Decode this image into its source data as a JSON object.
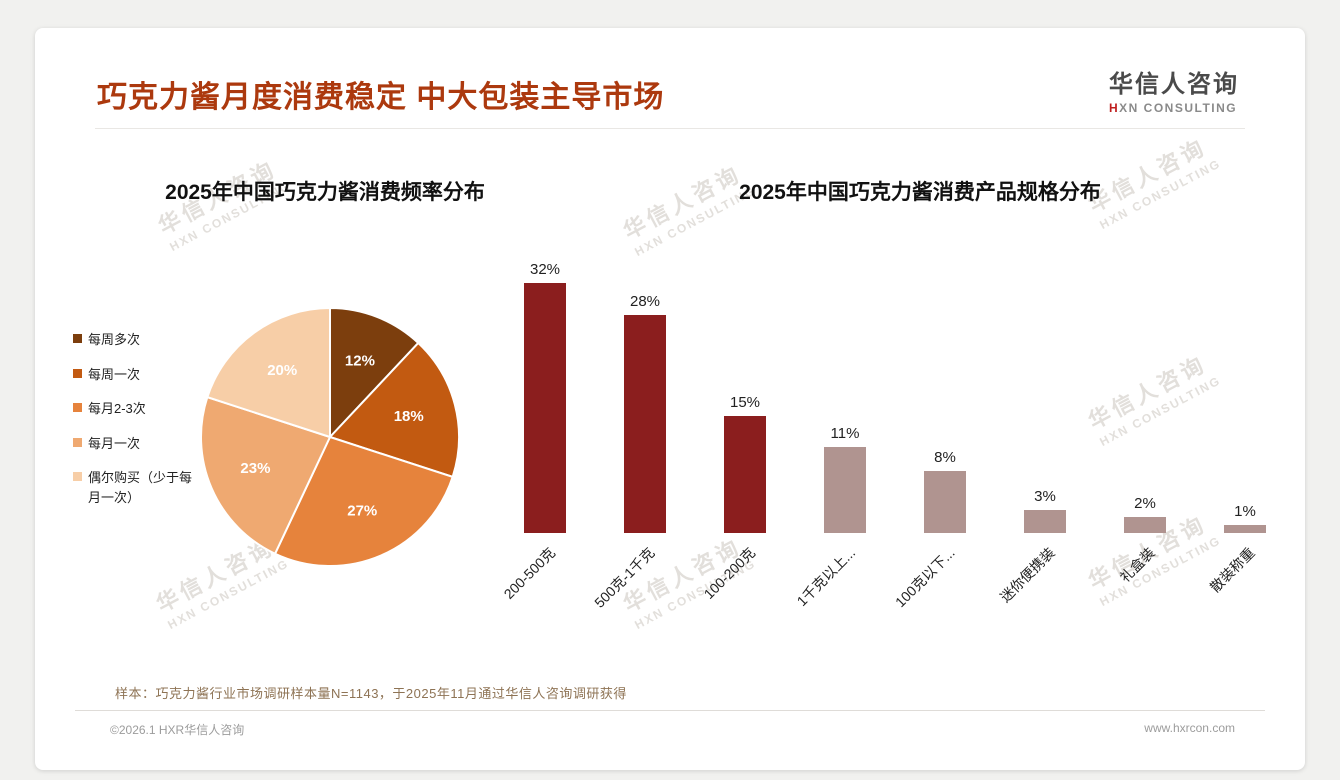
{
  "page_title": "巧克力酱月度消费稳定 中大包装主导市场",
  "brand": {
    "cn": "华信人咨询",
    "en_first": "H",
    "en_rest": "XN CONSULTING"
  },
  "watermark": {
    "line1": "华信人咨询",
    "line2": "HXN CONSULTING"
  },
  "footer": {
    "note": "样本：巧克力酱行业市场调研样本量N=1143，于2025年11月通过华信人咨询调研获得",
    "left": "©2026.1 HXR华信人咨询",
    "right": "www.hxrcon.com"
  },
  "chart_data": [
    {
      "type": "pie",
      "title": "2025年中国巧克力酱消费频率分布",
      "labels": [
        "每周多次",
        "每周一次",
        "每月2-3次",
        "每月一次",
        "偶尔购买（少于每月一次）"
      ],
      "values": [
        12,
        18,
        27,
        23,
        20
      ],
      "unit": "%",
      "colors": [
        "#7C3E0D",
        "#C25A11",
        "#E6833C",
        "#EFA971",
        "#F7CEA7"
      ],
      "legend_position": "left",
      "start_angle_deg": 0,
      "direction": "clockwise",
      "data_label_format": "percent"
    },
    {
      "type": "bar",
      "title": "2025年中国巧克力酱消费产品规格分布",
      "categories": [
        "200-500克",
        "500克-1千克",
        "100-200克",
        "1千克以上...",
        "100克以下...",
        "迷你便携装",
        "礼盒装",
        "散装称重"
      ],
      "values": [
        32,
        28,
        15,
        11,
        8,
        3,
        2,
        1
      ],
      "unit": "%",
      "bar_colors": [
        "#8B1E1E",
        "#8B1E1E",
        "#8B1E1E",
        "#B09490",
        "#B09490",
        "#B09490",
        "#B09490",
        "#B09490"
      ],
      "ylim": [
        0,
        35
      ],
      "gridlines": false,
      "data_labels": "percent",
      "xlabel": "",
      "ylabel": ""
    }
  ]
}
